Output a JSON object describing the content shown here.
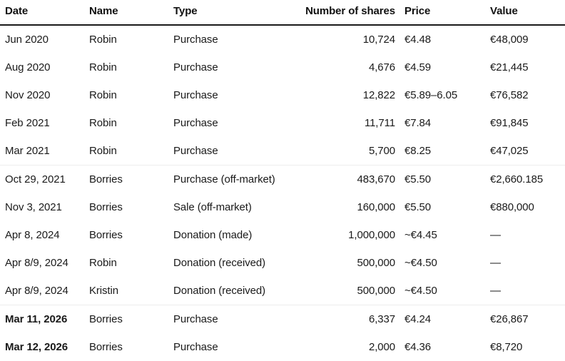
{
  "chart_data": {
    "type": "table",
    "title": "",
    "columns": [
      {
        "key": "date",
        "label": "Date",
        "align": "left"
      },
      {
        "key": "name",
        "label": "Name",
        "align": "left"
      },
      {
        "key": "type",
        "label": "Type",
        "align": "left"
      },
      {
        "key": "shares",
        "label": "Number of shares",
        "align": "right"
      },
      {
        "key": "price",
        "label": "Price",
        "align": "left"
      },
      {
        "key": "value",
        "label": "Value",
        "align": "left"
      }
    ],
    "rows": [
      {
        "date": "Jun 2020",
        "name": "Robin",
        "type": "Purchase",
        "shares": "10,724",
        "price": "€4.48",
        "value": "€48,009",
        "date_bold": false,
        "section_start": false
      },
      {
        "date": "Aug 2020",
        "name": "Robin",
        "type": "Purchase",
        "shares": "4,676",
        "price": "€4.59",
        "value": "€21,445",
        "date_bold": false,
        "section_start": false
      },
      {
        "date": "Nov 2020",
        "name": "Robin",
        "type": "Purchase",
        "shares": "12,822",
        "price": "€5.89–6.05",
        "value": "€76,582",
        "date_bold": false,
        "section_start": false
      },
      {
        "date": "Feb 2021",
        "name": "Robin",
        "type": "Purchase",
        "shares": "11,711",
        "price": "€7.84",
        "value": "€91,845",
        "date_bold": false,
        "section_start": false
      },
      {
        "date": "Mar 2021",
        "name": "Robin",
        "type": "Purchase",
        "shares": "5,700",
        "price": "€8.25",
        "value": "€47,025",
        "date_bold": false,
        "section_start": false
      },
      {
        "date": "Oct 29, 2021",
        "name": "Borries",
        "type": "Purchase (off-market)",
        "shares": "483,670",
        "price": "€5.50",
        "value": "€2,660.185",
        "date_bold": false,
        "section_start": true
      },
      {
        "date": "Nov 3, 2021",
        "name": "Borries",
        "type": "Sale (off-market)",
        "shares": "160,000",
        "price": "€5.50",
        "value": "€880,000",
        "date_bold": false,
        "section_start": false
      },
      {
        "date": "Apr 8, 2024",
        "name": "Borries",
        "type": "Donation (made)",
        "shares": "1,000,000",
        "price": "~€4.45",
        "value": "—",
        "date_bold": false,
        "section_start": false
      },
      {
        "date": "Apr 8/9, 2024",
        "name": "Robin",
        "type": "Donation (received)",
        "shares": "500,000",
        "price": "~€4.50",
        "value": "—",
        "date_bold": false,
        "section_start": false
      },
      {
        "date": "Apr 8/9, 2024",
        "name": "Kristin",
        "type": "Donation (received)",
        "shares": "500,000",
        "price": "~€4.50",
        "value": "—",
        "date_bold": false,
        "section_start": false
      },
      {
        "date": "Mar 11, 2026",
        "name": "Borries",
        "type": "Purchase",
        "shares": "6,337",
        "price": "€4.24",
        "value": "€26,867",
        "date_bold": true,
        "section_start": true
      },
      {
        "date": "Mar 12, 2026",
        "name": "Borries",
        "type": "Purchase",
        "shares": "2,000",
        "price": "€4.36",
        "value": "€8,720",
        "date_bold": true,
        "section_start": false
      }
    ],
    "colors": {
      "background": "#ffffff",
      "text": "#1a1a1a",
      "header_rule": "#1a1a1a",
      "section_rule": "#ededed"
    },
    "layout": {
      "header_bold": true,
      "shares_column_align": "right",
      "grid": "header-rule-and-faint-section-rules"
    }
  }
}
